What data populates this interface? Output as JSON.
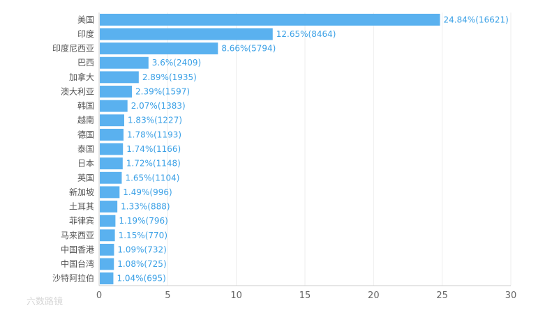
{
  "chart_data": {
    "type": "bar",
    "orientation": "horizontal",
    "categories": [
      "美国",
      "印度",
      "印度尼西亚",
      "巴西",
      "加拿大",
      "澳大利亚",
      "韩国",
      "越南",
      "德国",
      "泰国",
      "日本",
      "英国",
      "新加坡",
      "土耳其",
      "菲律宾",
      "马来西亚",
      "中国香港",
      "中国台湾",
      "沙特阿拉伯"
    ],
    "values": [
      24.84,
      12.65,
      8.66,
      3.6,
      2.89,
      2.39,
      2.07,
      1.83,
      1.78,
      1.74,
      1.72,
      1.65,
      1.49,
      1.33,
      1.19,
      1.15,
      1.09,
      1.08,
      1.04
    ],
    "labels": [
      "24.84%(16621)",
      "12.65%(8464)",
      "8.66%(5794)",
      "3.6%(2409)",
      "2.89%(1935)",
      "2.39%(1597)",
      "2.07%(1383)",
      "1.83%(1227)",
      "1.78%(1193)",
      "1.74%(1166)",
      "1.72%(1148)",
      "1.65%(1104)",
      "1.49%(996)",
      "1.33%(888)",
      "1.19%(796)",
      "1.15%(770)",
      "1.09%(732)",
      "1.08%(725)",
      "1.04%(695)"
    ],
    "xlim": [
      0,
      30
    ],
    "xticks": [
      "0",
      "5",
      "10",
      "15",
      "20",
      "25",
      "30"
    ],
    "grid": true,
    "bar_color": "#5ab1ef",
    "label_color": "#3aa0e6"
  },
  "watermark": "六数路镜"
}
